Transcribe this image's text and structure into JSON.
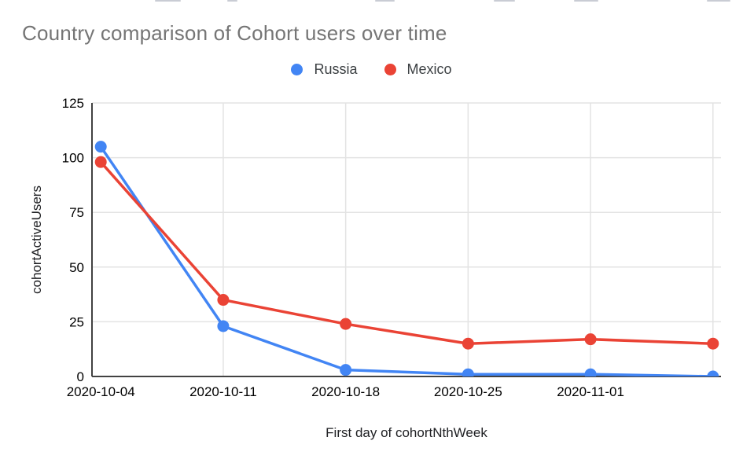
{
  "chart_data": {
    "type": "line",
    "title": "Country comparison of Cohort users over time",
    "title_color": "#757575",
    "xlabel": "First day of cohortNthWeek",
    "ylabel": "cohortActiveUsers",
    "x_tick_labels": [
      "2020-10-04",
      "2020-10-11",
      "2020-10-18",
      "2020-10-25",
      "2020-11-01",
      ""
    ],
    "y_ticks": [
      0,
      25,
      50,
      75,
      100,
      125
    ],
    "ylim": [
      0,
      125
    ],
    "grid": true,
    "legend_position": "top",
    "axis_color": "#424242",
    "gridline_color": "#e3e3e3",
    "tick_label_color": "#000000",
    "series": [
      {
        "name": "Russia",
        "color": "#4285F4",
        "values": [
          105,
          23,
          3,
          1,
          1,
          0
        ]
      },
      {
        "name": "Mexico",
        "color": "#EA4335",
        "values": [
          98,
          35,
          24,
          15,
          17,
          15
        ]
      }
    ]
  }
}
